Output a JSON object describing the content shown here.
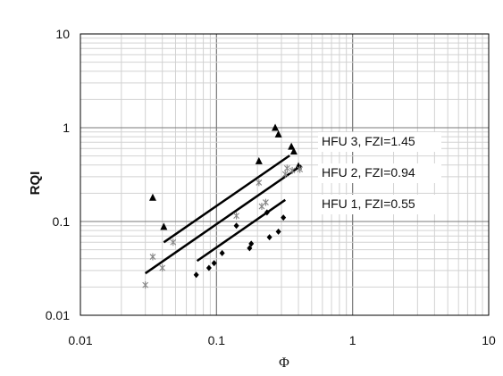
{
  "chart_data": {
    "type": "scatter",
    "title": "",
    "xlabel": "Φ",
    "ylabel": "RQI",
    "x_scale": "log",
    "y_scale": "log",
    "xlim": [
      0.01,
      10
    ],
    "ylim": [
      0.01,
      10
    ],
    "x_ticks": [
      "0.01",
      "0.1",
      "1",
      "10"
    ],
    "y_ticks": [
      "0.01",
      "0.1",
      "1",
      "10"
    ],
    "grid": true,
    "series": [
      {
        "name": "HFU 3",
        "marker": "triangle",
        "color": "#000000",
        "points": [
          {
            "x": 0.034,
            "y": 0.18
          },
          {
            "x": 0.041,
            "y": 0.088
          },
          {
            "x": 0.205,
            "y": 0.44
          },
          {
            "x": 0.27,
            "y": 1.0
          },
          {
            "x": 0.285,
            "y": 0.85
          },
          {
            "x": 0.355,
            "y": 0.63
          },
          {
            "x": 0.37,
            "y": 0.56
          },
          {
            "x": 0.4,
            "y": 0.39
          }
        ]
      },
      {
        "name": "HFU 2",
        "marker": "asterisk",
        "color": "#888888",
        "points": [
          {
            "x": 0.03,
            "y": 0.021
          },
          {
            "x": 0.034,
            "y": 0.042
          },
          {
            "x": 0.04,
            "y": 0.032
          },
          {
            "x": 0.048,
            "y": 0.06
          },
          {
            "x": 0.14,
            "y": 0.115
          },
          {
            "x": 0.205,
            "y": 0.26
          },
          {
            "x": 0.215,
            "y": 0.145
          },
          {
            "x": 0.23,
            "y": 0.16
          },
          {
            "x": 0.32,
            "y": 0.32
          },
          {
            "x": 0.33,
            "y": 0.37
          },
          {
            "x": 0.36,
            "y": 0.35
          },
          {
            "x": 0.41,
            "y": 0.36
          }
        ]
      },
      {
        "name": "HFU 1",
        "marker": "diamond",
        "color": "#000000",
        "points": [
          {
            "x": 0.071,
            "y": 0.027
          },
          {
            "x": 0.088,
            "y": 0.032
          },
          {
            "x": 0.096,
            "y": 0.036
          },
          {
            "x": 0.11,
            "y": 0.046
          },
          {
            "x": 0.14,
            "y": 0.09
          },
          {
            "x": 0.175,
            "y": 0.052
          },
          {
            "x": 0.18,
            "y": 0.058
          },
          {
            "x": 0.235,
            "y": 0.125
          },
          {
            "x": 0.245,
            "y": 0.068
          },
          {
            "x": 0.285,
            "y": 0.078
          },
          {
            "x": 0.31,
            "y": 0.11
          }
        ]
      }
    ],
    "trend_lines": [
      {
        "label": "HFU 3, FZI=1.45",
        "x": [
          0.041,
          0.345
        ],
        "y": [
          0.06,
          0.505
        ]
      },
      {
        "label": "HFU 2, FZI=0.94",
        "x": [
          0.03,
          0.42
        ],
        "y": [
          0.028,
          0.395
        ]
      },
      {
        "label": "HFU 1, FZI=0.55",
        "x": [
          0.072,
          0.32
        ],
        "y": [
          0.038,
          0.17
        ]
      }
    ]
  }
}
